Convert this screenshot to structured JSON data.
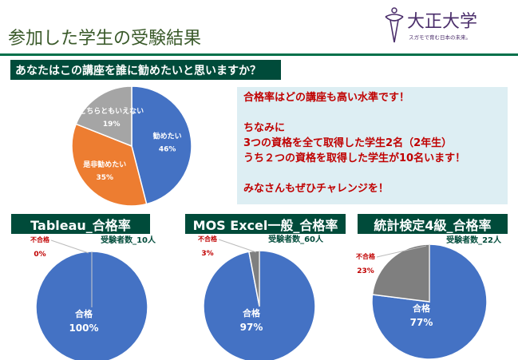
{
  "header": {
    "title": "参加した学生の受験結果",
    "logo": {
      "name": "大正大学",
      "tagline": "スガモで育む日本の未来。"
    }
  },
  "question": "あなたはこの講座を誰に勧めたいと思いますか？",
  "note": [
    "合格率はどの講座も高い水準です！",
    "",
    "ちなみに",
    "3つの資格を全て取得した学生2名（2年生）",
    "うち２つの資格を取得した学生が10名います！",
    "",
    "みなさんもぜひチャレンジを！"
  ],
  "colors": {
    "blue": "#4472c4",
    "orange": "#ed7d31",
    "gray": "#a5a5a5",
    "dark_gray": "#7f7f7f",
    "green": "#004b3a",
    "red": "#c00000"
  },
  "chart_data": [
    {
      "type": "pie",
      "title": "",
      "slices": [
        {
          "label": "勧めたい",
          "value": 46,
          "text": "46%",
          "color": "#4472c4"
        },
        {
          "label": "是非勧めたい",
          "value": 35,
          "text": "35%",
          "color": "#ed7d31"
        },
        {
          "label": "どちらともいえない",
          "value": 19,
          "text": "19%",
          "color": "#a5a5a5"
        }
      ]
    },
    {
      "type": "pie",
      "title": "Tableau_合格率",
      "subtitle": "受験者数_10人",
      "slices": [
        {
          "label": "合格",
          "value": 100,
          "text": "100%",
          "color": "#4472c4"
        },
        {
          "label": "不合格",
          "value": 0,
          "text": "0%",
          "color": "#7f7f7f"
        }
      ]
    },
    {
      "type": "pie",
      "title": "MOS Excel一般_合格率",
      "subtitle": "受験者数_60人",
      "slices": [
        {
          "label": "合格",
          "value": 97,
          "text": "97%",
          "color": "#4472c4"
        },
        {
          "label": "不合格",
          "value": 3,
          "text": "3%",
          "color": "#7f7f7f"
        }
      ]
    },
    {
      "type": "pie",
      "title": "統計検定4級_合格率",
      "subtitle": "受験者数_22人",
      "slices": [
        {
          "label": "合格",
          "value": 77,
          "text": "77%",
          "color": "#4472c4"
        },
        {
          "label": "不合格",
          "value": 23,
          "text": "23%",
          "color": "#7f7f7f"
        }
      ]
    }
  ]
}
